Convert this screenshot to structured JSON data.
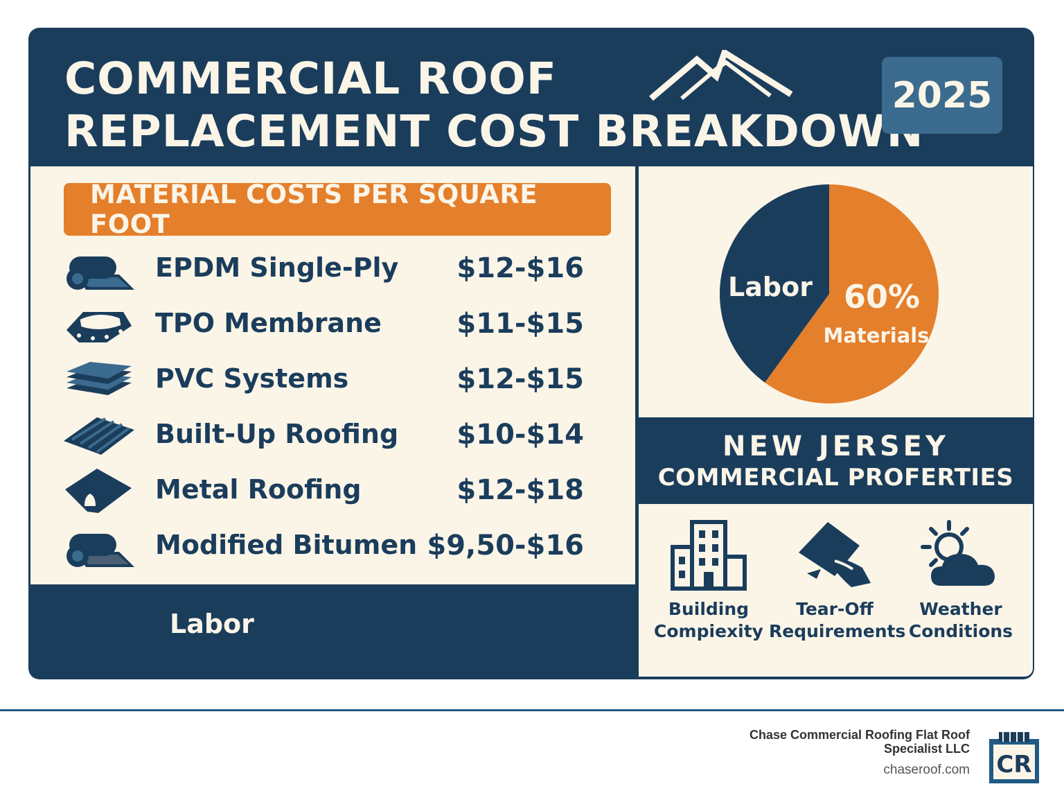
{
  "header": {
    "title_line1": "COMMERCIAL ROOF",
    "title_line2": "REPLACEMENT COST BREAKDOWN",
    "year": "2025"
  },
  "materials": {
    "heading": "MATERIAL COSTS PER SQUARE FOOT",
    "items": [
      {
        "name": "EPDM Single-Ply",
        "price": "$12-$16",
        "icon": "membrane-roll-icon"
      },
      {
        "name": "TPO Membrane",
        "price": "$11-$15",
        "icon": "membrane-sheet-icon"
      },
      {
        "name": "PVC Systems",
        "price": "$12-$15",
        "icon": "stacked-layers-icon"
      },
      {
        "name": "Built-Up Roofing",
        "price": "$10-$14",
        "icon": "corrugated-panel-icon"
      },
      {
        "name": "Metal Roofing",
        "price": "$12-$18",
        "icon": "metal-roof-icon"
      },
      {
        "name": "Modified Bitumen",
        "price": "$9,50-$16",
        "icon": "bitumen-roll-icon"
      }
    ],
    "labor_label": "Labor"
  },
  "chart_data": {
    "type": "pie",
    "slices": [
      {
        "label": "Labor",
        "value": 40,
        "color": "#1b3d5c"
      },
      {
        "label": "Materials",
        "value": 60,
        "value_label": "60%",
        "color": "#e47f2b"
      }
    ]
  },
  "region": {
    "title": "NEW JERSEY",
    "subtitle": "COMMERCIAL PROFERTIES"
  },
  "factors": [
    {
      "line1": "Building",
      "line2": "Compiexity",
      "icon": "building-icon"
    },
    {
      "line1": "Tear-Off",
      "line2": "Requirements",
      "icon": "tear-off-icon"
    },
    {
      "line1": "Weather",
      "line2": "Conditions",
      "icon": "sun-cloud-icon"
    }
  ],
  "footer": {
    "company_line1": "Chase Commercial Roofing Flat Roof",
    "company_line2": "Specialist LLC",
    "website": "chaseroof.com",
    "logo_text": "CR"
  },
  "colors": {
    "navy": "#1b3d5c",
    "orange": "#e47f2b",
    "cream": "#fbf5e8",
    "badge_blue": "#3b6b8e"
  }
}
